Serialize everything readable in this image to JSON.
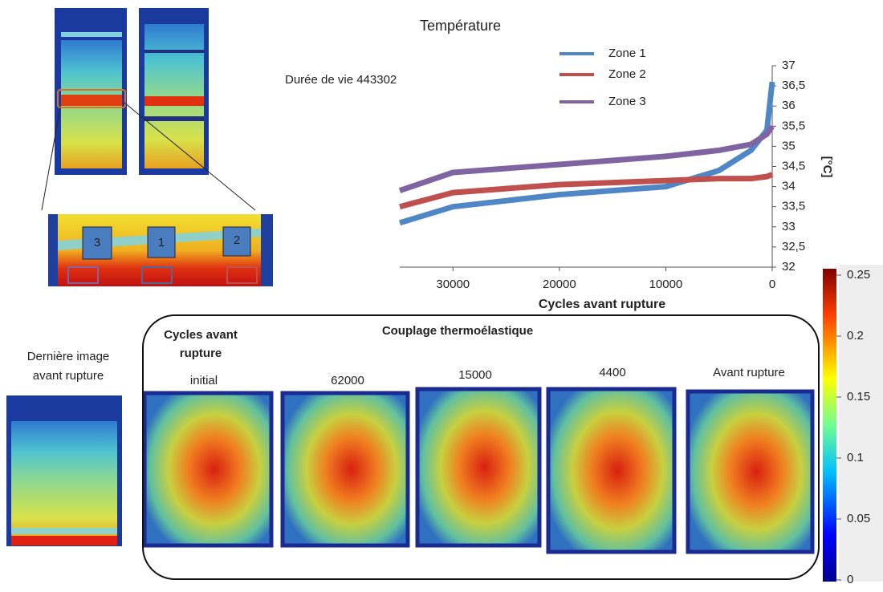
{
  "chart_data": {
    "type": "line",
    "title": "Température",
    "xlabel": "Cycles avant rupture",
    "ylabel": "[°C]",
    "x": [
      35000,
      30000,
      25000,
      20000,
      15000,
      10000,
      5000,
      2000,
      500,
      0
    ],
    "series": [
      {
        "name": "Zone 1",
        "color": "#4f86c6",
        "values": [
          33.1,
          33.5,
          33.65,
          33.8,
          33.9,
          34.0,
          34.4,
          34.9,
          35.4,
          36.6
        ]
      },
      {
        "name": "Zone 2",
        "color": "#c0504d",
        "values": [
          33.5,
          33.85,
          33.95,
          34.05,
          34.1,
          34.15,
          34.2,
          34.2,
          34.25,
          34.3
        ]
      },
      {
        "name": "Zone 3",
        "color": "#8064a2",
        "values": [
          33.9,
          34.35,
          34.45,
          34.55,
          34.65,
          34.75,
          34.9,
          35.05,
          35.3,
          35.5
        ]
      }
    ],
    "xlim": [
      35000,
      0
    ],
    "xticks": [
      30000,
      20000,
      10000,
      0
    ],
    "ylim": [
      32,
      37
    ],
    "yticks": [
      32,
      {
        "value": 32.5,
        "label": "32,5"
      },
      33,
      {
        "value": 33.5,
        "label": "33,5"
      },
      34,
      {
        "value": 34.5,
        "label": "34,5"
      },
      35,
      {
        "value": 35.5,
        "label": "35,5"
      },
      36,
      {
        "value": 36.5,
        "label": "36,5"
      },
      37
    ],
    "legend": "top-left"
  },
  "colorbar": {
    "lim": [
      0,
      0.25
    ],
    "ticks": [
      0,
      0.05,
      0.1,
      0.15,
      0.2,
      0.25
    ]
  },
  "labels": {
    "lifetime": "Durée de vie 443302",
    "zones": [
      "3",
      "1",
      "2"
    ],
    "last_image": [
      "Dernière image",
      "avant rupture"
    ],
    "cycles_heading": [
      "Cycles avant",
      "rupture"
    ],
    "panel_title": "Couplage thermoélastique",
    "snapshots": [
      "initial",
      "62000",
      "15000",
      "4400",
      "Avant rupture"
    ]
  }
}
